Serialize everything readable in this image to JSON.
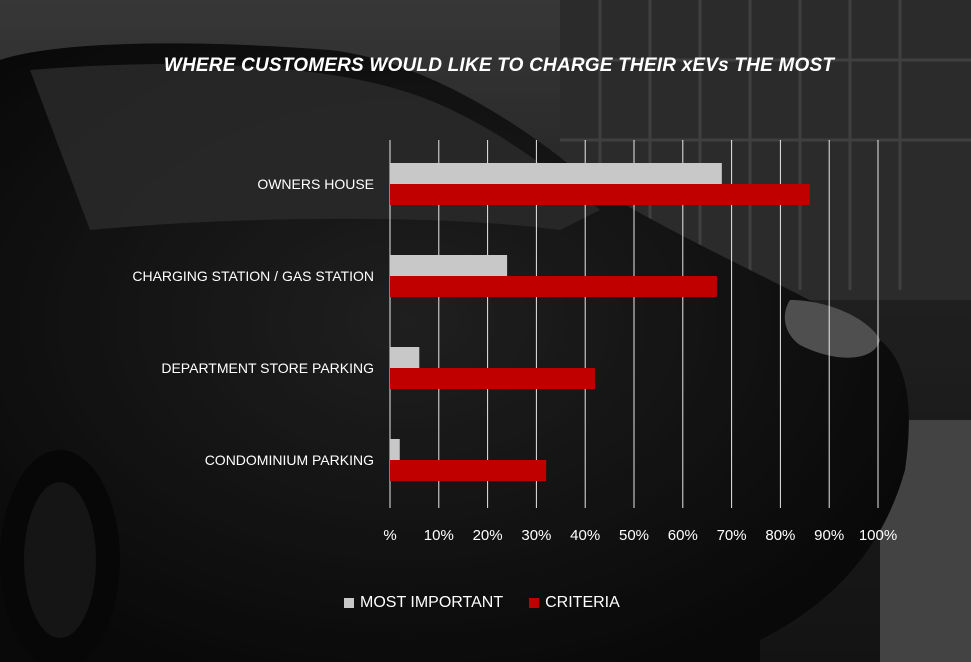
{
  "chart_data": {
    "type": "bar",
    "orientation": "horizontal",
    "title": "WHERE CUSTOMERS WOULD  LIKE TO CHARGE THEIR xEVs THE MOST",
    "categories": [
      "OWNERS HOUSE",
      "CHARGING STATION / GAS STATION",
      "DEPARTMENT STORE PARKING",
      "CONDOMINIUM PARKING"
    ],
    "series": [
      {
        "name": "MOST IMPORTANT",
        "color": "#c8c8c8",
        "values": [
          68,
          24,
          6,
          2
        ]
      },
      {
        "name": "CRITERIA",
        "color": "#c00000",
        "values": [
          86,
          67,
          42,
          32
        ]
      }
    ],
    "xlim": [
      0,
      100
    ],
    "x_ticks": [
      "%",
      "10%",
      "20%",
      "30%",
      "40%",
      "50%",
      "60%",
      "70%",
      "80%",
      "90%",
      "100%"
    ],
    "grid": "vertical",
    "legend_position": "bottom"
  },
  "background": {
    "description_icon": "car-photo",
    "tone": "grayscale"
  }
}
